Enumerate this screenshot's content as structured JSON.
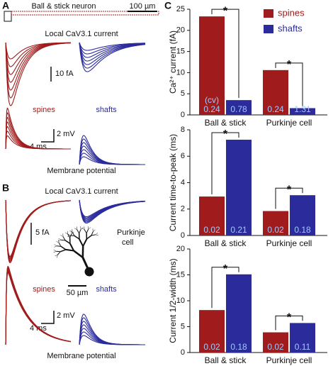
{
  "figure": {
    "panel_labels": [
      "A",
      "B",
      "C"
    ],
    "panel_a": {
      "schematic": "Ball & stick neuron",
      "schematic_scale": "100 µm",
      "current_title": "Local CaV3.1 current",
      "current_scale": "10 fA",
      "spines": "spines",
      "shafts": "shafts",
      "voltage_scale_v": "2 mV",
      "voltage_scale_t": "4 ms",
      "voltage_title": "Membrane potential"
    },
    "panel_b": {
      "current_title": "Local CaV3.1 current",
      "current_scale": "5 fA",
      "morphology_lines": [
        "Purkinje",
        "cell"
      ],
      "morphology_scale": "50 µm",
      "spines": "spines",
      "shafts": "shafts",
      "voltage_scale_v": "2 mV",
      "voltage_scale_t": "4 ms",
      "voltage_title": "Membrane potential"
    }
  },
  "chart_data": [
    {
      "type": "bar",
      "y_label": "Ca²⁺ current  (fA)",
      "categories": [
        "Ball & stick",
        "Purkinje cell"
      ],
      "series": [
        {
          "name": "spines",
          "color": "#a01c1c",
          "values": [
            23.3,
            10.6
          ],
          "cv": [
            0.24,
            0.24
          ]
        },
        {
          "name": "shafts",
          "color": "#2b2b9c",
          "values": [
            3.5,
            1.6
          ],
          "cv": [
            0.78,
            1.31
          ]
        }
      ],
      "cv_label": "(cv)",
      "significance": [
        "*",
        "*"
      ],
      "ylim": [
        0,
        25
      ],
      "yticks": [
        0,
        5,
        10,
        15,
        20,
        25
      ],
      "legend": "upper right"
    },
    {
      "type": "bar",
      "y_label": "Current time-to-peak (ms)",
      "categories": [
        "Ball & stick",
        "Purkinje cell"
      ],
      "series": [
        {
          "color": "#a01c1c",
          "values": [
            2.95,
            1.85
          ],
          "cv": [
            0.02,
            0.02
          ]
        },
        {
          "color": "#2b2b9c",
          "values": [
            7.25,
            3.05
          ],
          "cv": [
            0.21,
            0.18
          ]
        }
      ],
      "significance": [
        "*",
        "*"
      ],
      "ylim": [
        0,
        8
      ],
      "yticks": [
        0,
        2,
        4,
        6,
        8
      ]
    },
    {
      "type": "bar",
      "y_label": "Current 1/2-width (ms)",
      "categories": [
        "Ball & stick",
        "Purkinje cell"
      ],
      "series": [
        {
          "color": "#a01c1c",
          "values": [
            8.2,
            3.9
          ],
          "cv": [
            0.02,
            0.02
          ]
        },
        {
          "color": "#2b2b9c",
          "values": [
            15.1,
            5.7
          ],
          "cv": [
            0.18,
            0.11
          ]
        }
      ],
      "significance": [
        "*",
        "*"
      ],
      "ylim": [
        0,
        20
      ],
      "yticks": [
        0,
        5,
        10,
        15,
        20
      ]
    }
  ]
}
